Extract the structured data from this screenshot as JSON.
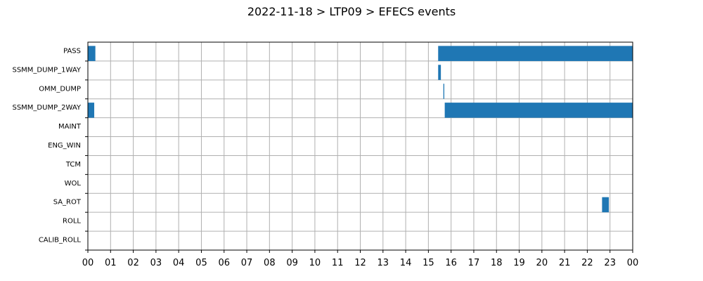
{
  "chart_data": {
    "type": "bar",
    "orientation": "horizontal-timeline",
    "title": "2022-11-18 > LTP09 > EFECS events",
    "xlabel": "",
    "ylabel": "",
    "x_unit": "hour of day",
    "xlim": [
      0,
      24
    ],
    "grid": true,
    "bar_color": "#1f77b4",
    "categories": [
      "PASS",
      "SSMM_DUMP_1WAY",
      "OMM_DUMP",
      "SSMM_DUMP_2WAY",
      "MAINT",
      "ENG_WIN",
      "TCM",
      "WOL",
      "SA_ROT",
      "ROLL",
      "CALIB_ROLL"
    ],
    "x_tick_labels": [
      "00",
      "01",
      "02",
      "03",
      "04",
      "05",
      "06",
      "07",
      "08",
      "09",
      "10",
      "11",
      "12",
      "13",
      "14",
      "15",
      "16",
      "17",
      "18",
      "19",
      "20",
      "21",
      "22",
      "23",
      "00"
    ],
    "events": [
      {
        "category": "PASS",
        "start": 0.0,
        "end": 0.33
      },
      {
        "category": "PASS",
        "start": 15.43,
        "end": 24.0
      },
      {
        "category": "SSMM_DUMP_1WAY",
        "start": 15.43,
        "end": 15.55
      },
      {
        "category": "OMM_DUMP",
        "start": 15.66,
        "end": 15.7
      },
      {
        "category": "SSMM_DUMP_2WAY",
        "start": 0.0,
        "end": 0.28
      },
      {
        "category": "SSMM_DUMP_2WAY",
        "start": 15.72,
        "end": 24.0
      },
      {
        "category": "SA_ROT",
        "start": 22.65,
        "end": 22.95
      }
    ]
  }
}
